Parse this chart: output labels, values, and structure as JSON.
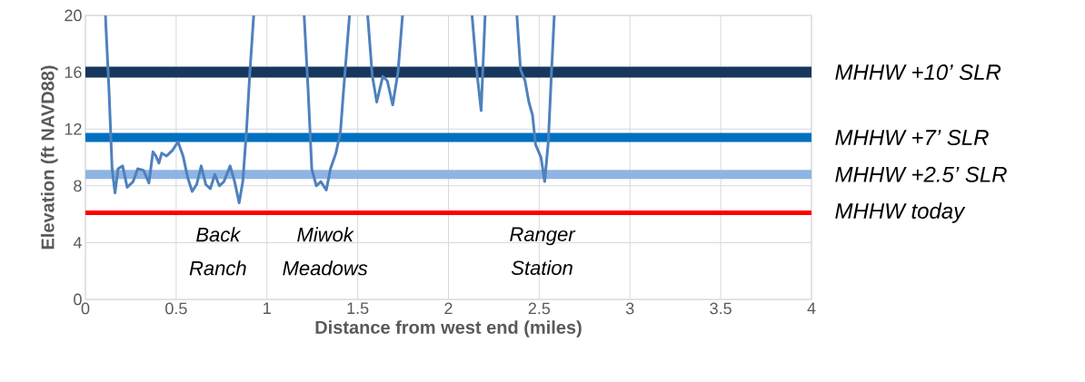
{
  "chart_data": {
    "type": "line",
    "xlabel": "Distance from west end (miles)",
    "ylabel": "Elevation (ft NAVD88)",
    "xlim": [
      0,
      4
    ],
    "xticks": [
      0,
      0.5,
      1,
      1.5,
      2,
      2.5,
      3,
      3.5,
      4
    ],
    "ylim": [
      0,
      20
    ],
    "yticks": [
      0,
      4,
      8,
      12,
      16,
      20
    ],
    "grid": true,
    "marker": "none",
    "line_style": "solid",
    "series": [
      {
        "color": "#4f81bd",
        "x": [
          0.11,
          0.13,
          0.147,
          0.163,
          0.18,
          0.205,
          0.23,
          0.263,
          0.288,
          0.32,
          0.35,
          0.372,
          0.388,
          0.405,
          0.42,
          0.447,
          0.48,
          0.51,
          0.538,
          0.563,
          0.588,
          0.613,
          0.638,
          0.663,
          0.688,
          0.713,
          0.738,
          0.763,
          0.797,
          0.822,
          0.847,
          0.867,
          0.888,
          0.905,
          0.927,
          1.0,
          1.205,
          1.227,
          1.247,
          1.272,
          1.297,
          1.327,
          1.35,
          1.38,
          1.405,
          1.422,
          1.455,
          1.5,
          1.555,
          1.58,
          1.605,
          1.638,
          1.663,
          1.693,
          1.722,
          1.747,
          2.0,
          2.13,
          2.155,
          2.18,
          2.202,
          2.3,
          2.377,
          2.397,
          2.422,
          2.443,
          2.463,
          2.48,
          2.51,
          2.53,
          2.55,
          2.567,
          2.583
        ],
        "values": [
          20,
          14.7,
          9.2,
          7.5,
          9.2,
          9.4,
          7.9,
          8.3,
          9.2,
          9.1,
          8.2,
          10.4,
          10.1,
          9.6,
          10.3,
          10.1,
          10.5,
          11.1,
          10.1,
          8.6,
          7.6,
          8.1,
          9.4,
          8.1,
          7.8,
          8.8,
          8.0,
          8.3,
          9.4,
          8.3,
          6.8,
          8.3,
          12.0,
          15.8,
          20,
          null,
          20,
          14.7,
          9.2,
          8.0,
          8.3,
          7.7,
          9.2,
          10.3,
          11.8,
          14.7,
          20,
          null,
          20,
          15.8,
          13.9,
          15.7,
          15.4,
          13.7,
          16.0,
          20,
          null,
          20,
          16.2,
          13.3,
          20,
          null,
          20,
          16.2,
          15.4,
          13.9,
          13.0,
          10.9,
          10.0,
          8.3,
          11.1,
          15.8,
          20
        ]
      }
    ],
    "ref_lines": [
      {
        "axis": "y",
        "value": 16,
        "label": "MHHW +10’ SLR",
        "color": "#17375e"
      },
      {
        "axis": "y",
        "value": 11.4,
        "label": "MHHW +7’ SLR",
        "color": "#0070c0"
      },
      {
        "axis": "y",
        "value": 8.8,
        "label": "MHHW +2.5’ SLR",
        "color": "#8eb4e3"
      },
      {
        "axis": "y",
        "value": 6.1,
        "label": "MHHW today",
        "color": "#ff0000"
      }
    ],
    "annotations": [
      "Back Ranch",
      "Miwok Meadows",
      "Ranger Station"
    ]
  }
}
